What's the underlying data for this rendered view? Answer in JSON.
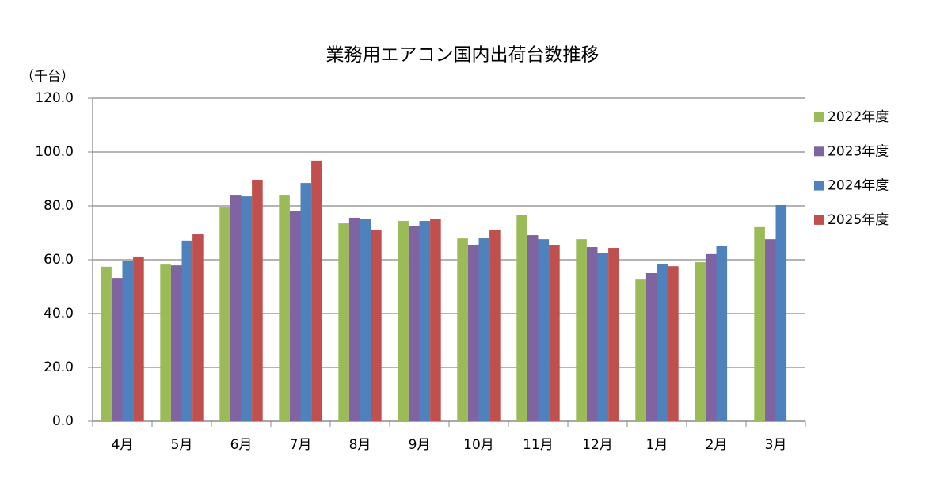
{
  "chart_data": {
    "type": "bar",
    "title": "業務用エアコン国内出荷台数推移",
    "ylabel": "（千台）",
    "categories": [
      "4月",
      "5月",
      "6月",
      "7月",
      "8月",
      "9月",
      "10月",
      "11月",
      "12月",
      "1月",
      "2月",
      "3月"
    ],
    "series": [
      {
        "name": "2022年度",
        "color": "#9bbb59",
        "values": [
          57.4,
          58.2,
          79.4,
          84.1,
          73.5,
          74.4,
          67.9,
          76.5,
          67.6,
          52.9,
          59.1,
          72.1
        ]
      },
      {
        "name": "2023年度",
        "color": "#8064a2",
        "values": [
          53.2,
          57.9,
          84.1,
          78.2,
          75.6,
          72.6,
          65.6,
          69.1,
          64.7,
          55.0,
          62.1,
          67.6
        ]
      },
      {
        "name": "2024年度",
        "color": "#4f81bd",
        "values": [
          59.7,
          67.1,
          83.5,
          88.5,
          75.0,
          74.4,
          68.2,
          67.6,
          62.4,
          58.5,
          65.0,
          80.3
        ]
      },
      {
        "name": "2025年度",
        "color": "#c0504d",
        "values": [
          61.2,
          69.4,
          89.7,
          96.8,
          71.2,
          75.3,
          70.9,
          65.3,
          64.4,
          57.6,
          null,
          null
        ]
      }
    ],
    "ylim": [
      0,
      120
    ],
    "yticks": [
      {
        "value": 0,
        "label": "0.0"
      },
      {
        "value": 20,
        "label": "20.0"
      },
      {
        "value": 40,
        "label": "40.0"
      },
      {
        "value": 60,
        "label": "60.0"
      },
      {
        "value": 80,
        "label": "80.0"
      },
      {
        "value": 100,
        "label": "100.0"
      },
      {
        "value": 120,
        "label": "120.0"
      }
    ],
    "grid": true,
    "legend": "right"
  }
}
